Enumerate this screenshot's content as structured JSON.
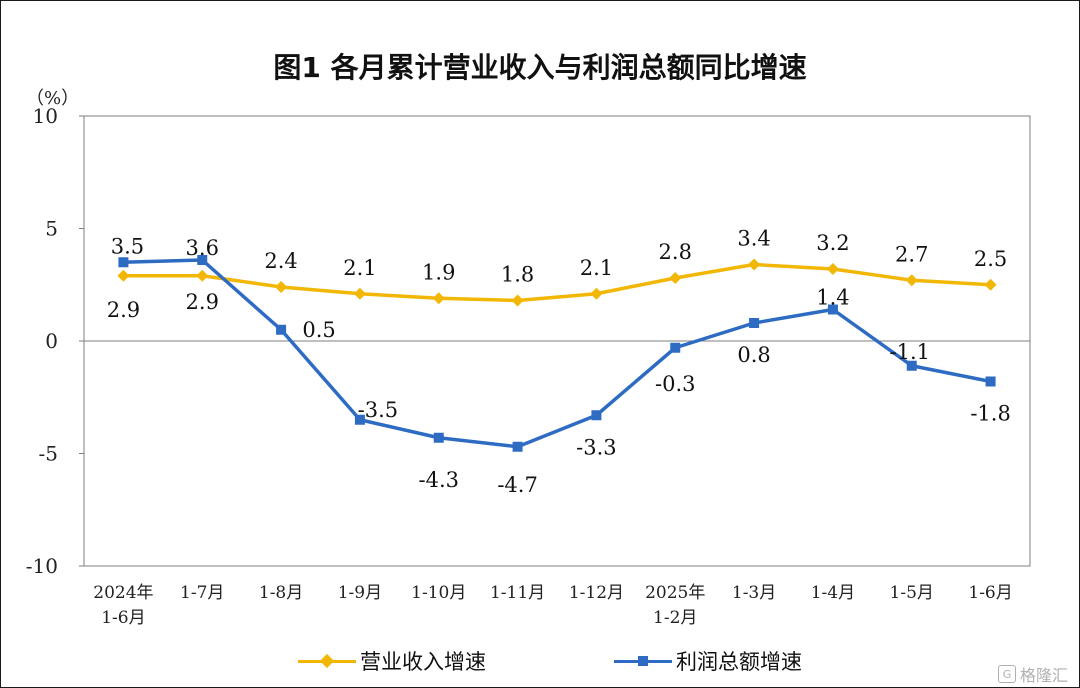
{
  "chart_data": {
    "type": "line",
    "title": "图1  各月累计营业收入与利润总额同比增速",
    "unit_label": "（%）",
    "ylim": [
      -10,
      10
    ],
    "yticks": [
      "10",
      "5",
      "0",
      "-5",
      "-10"
    ],
    "categories": [
      "2024年\n1-6月",
      "1-7月",
      "1-8月",
      "1-9月",
      "1-10月",
      "1-11月",
      "1-12月",
      "2025年\n1-2月",
      "1-3月",
      "1-4月",
      "1-5月",
      "1-6月"
    ],
    "series": [
      {
        "name": "营业收入增速",
        "color": "#F2B705",
        "marker": "diamond",
        "values": [
          2.9,
          2.9,
          2.4,
          2.1,
          1.9,
          1.8,
          2.1,
          2.8,
          3.4,
          3.2,
          2.7,
          2.5
        ],
        "labels": [
          "2.9",
          "2.9",
          "2.4",
          "2.1",
          "1.9",
          "1.8",
          "2.1",
          "2.8",
          "3.4",
          "3.2",
          "2.7",
          "2.5"
        ]
      },
      {
        "name": "利润总额增速",
        "color": "#2E6CC4",
        "marker": "square",
        "values": [
          3.5,
          3.6,
          0.5,
          -3.5,
          -4.3,
          -4.7,
          -3.3,
          -0.3,
          0.8,
          1.4,
          -1.1,
          -1.8
        ],
        "labels": [
          "3.5",
          "3.6",
          "0.5",
          "-3.5",
          "-4.3",
          "-4.7",
          "-3.3",
          "-0.3",
          "0.8",
          "1.4",
          "-1.1",
          "-1.8"
        ]
      }
    ],
    "legend_position": "bottom",
    "grid": false
  },
  "watermark": {
    "icon": "G",
    "text": "格隆汇"
  }
}
